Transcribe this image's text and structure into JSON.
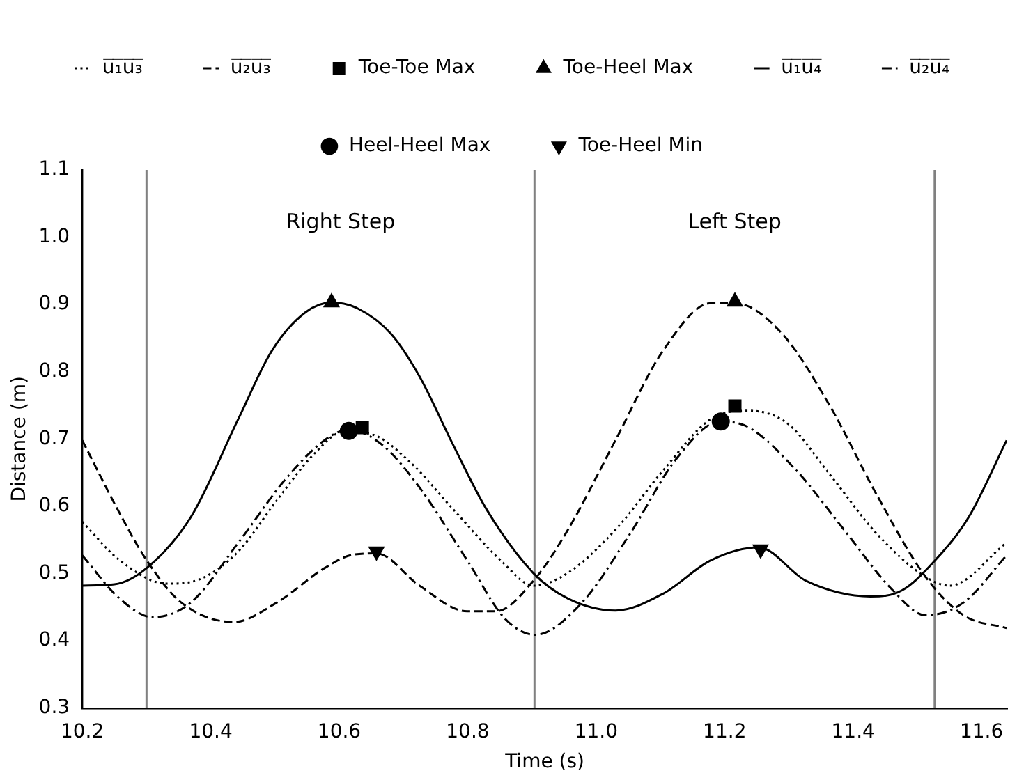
{
  "chart_data": {
    "type": "line",
    "xlabel": "Time (s)",
    "ylabel": "Distance (m)",
    "xlim": [
      10.2,
      11.64
    ],
    "ylim": [
      0.3,
      1.1
    ],
    "xticks": [
      10.2,
      10.4,
      10.6,
      10.8,
      {
        "value": 11,
        "label": "11.0"
      },
      11.2,
      11.4,
      11.6
    ],
    "yticks": [
      0.3,
      0.4,
      0.5,
      0.6,
      0.7,
      0.8,
      0.9,
      {
        "value": 1,
        "label": "1.0"
      },
      1.1
    ],
    "grid": false,
    "legend": "top",
    "marker": "none",
    "ref_lines": [
      {
        "axis": "x",
        "value": 10.3,
        "color": "#808080"
      },
      {
        "axis": "x",
        "value": 10.904,
        "color": "#808080"
      },
      {
        "axis": "x",
        "value": 11.527,
        "color": "#808080"
      }
    ],
    "annotations": [
      "Right Step",
      "Left Step"
    ],
    "series": [
      {
        "name": "u̅₁̅u̅₃̅",
        "color": "#000000",
        "line_style": "dotted",
        "x": [
          10.2,
          10.258,
          10.332,
          10.384,
          10.443,
          10.503,
          10.562,
          10.607,
          10.651,
          10.71,
          10.777,
          10.851,
          10.903,
          10.956,
          11.03,
          11.104,
          11.179,
          11.238,
          11.298,
          11.364,
          11.438,
          11.513,
          11.55,
          11.639
        ],
        "values": [
          0.577,
          0.52,
          0.485,
          0.492,
          0.533,
          0.609,
          0.679,
          0.711,
          0.707,
          0.666,
          0.596,
          0.52,
          0.482,
          0.501,
          0.565,
          0.653,
          0.73,
          0.742,
          0.723,
          0.647,
          0.558,
          0.495,
          0.482,
          0.546
        ]
      },
      {
        "name": "u̅₁̅u̅₄̅",
        "color": "#000000",
        "line_style": "solid",
        "x": [
          10.2,
          10.25,
          10.3,
          10.369,
          10.443,
          10.495,
          10.547,
          10.588,
          10.629,
          10.681,
          10.725,
          10.777,
          10.829,
          10.903,
          10.956,
          11.03,
          11.104,
          11.179,
          11.253,
          11.327,
          11.427,
          11.476,
          11.528,
          11.58,
          11.639
        ],
        "values": [
          0.482,
          0.484,
          0.508,
          0.584,
          0.73,
          0.831,
          0.888,
          0.903,
          0.894,
          0.856,
          0.793,
          0.692,
          0.596,
          0.5,
          0.463,
          0.445,
          0.47,
          0.52,
          0.539,
          0.489,
          0.466,
          0.475,
          0.52,
          0.584,
          0.698
        ]
      },
      {
        "name": "u̅₂̅u̅₃̅",
        "color": "#000000",
        "line_style": "dashed",
        "x": [
          10.2,
          10.258,
          10.3,
          10.354,
          10.436,
          10.503,
          10.577,
          10.621,
          10.658,
          10.725,
          10.799,
          10.844,
          10.903,
          10.956,
          11.03,
          11.104,
          11.179,
          11.216,
          11.29,
          11.364,
          11.438,
          11.513,
          11.572,
          11.639
        ],
        "values": [
          0.698,
          0.59,
          0.52,
          0.457,
          0.428,
          0.457,
          0.508,
          0.528,
          0.53,
          0.482,
          0.444,
          0.444,
          0.49,
          0.565,
          0.698,
          0.831,
          0.902,
          0.902,
          0.856,
          0.749,
          0.615,
          0.495,
          0.438,
          0.419
        ]
      },
      {
        "name": "u̅₂̅u̅₄̅",
        "color": "#000000",
        "line_style": "dashdot",
        "x": [
          10.2,
          10.258,
          10.31,
          10.369,
          10.443,
          10.517,
          10.577,
          10.614,
          10.666,
          10.725,
          10.799,
          10.859,
          10.905,
          10.978,
          11.052,
          11.126,
          11.193,
          11.238,
          11.312,
          11.386,
          11.461,
          11.513,
          11.572,
          11.639
        ],
        "values": [
          0.527,
          0.463,
          0.435,
          0.457,
          0.546,
          0.641,
          0.698,
          0.714,
          0.692,
          0.628,
          0.52,
          0.432,
          0.409,
          0.457,
          0.558,
          0.672,
          0.726,
          0.717,
          0.653,
          0.565,
          0.476,
          0.438,
          0.457,
          0.527
        ]
      },
      {
        "name": "Toe-Toe Max",
        "type": "scatter",
        "marker": "square",
        "color": "#000000",
        "x": [
          10.636,
          11.216
        ],
        "values": [
          0.717,
          0.749
        ]
      },
      {
        "name": "Heel-Heel Max",
        "type": "scatter",
        "marker": "circle",
        "color": "#000000",
        "x": [
          10.615,
          11.194
        ],
        "values": [
          0.712,
          0.726
        ]
      },
      {
        "name": "Toe-Heel Max",
        "type": "scatter",
        "marker": "triangle",
        "color": "#000000",
        "x": [
          10.588,
          11.216
        ],
        "values": [
          0.903,
          0.904
        ]
      },
      {
        "name": "Toe-Heel Min",
        "type": "scatter",
        "marker": "triangle_down",
        "color": "#000000",
        "x": [
          10.658,
          11.256
        ],
        "values": [
          0.533,
          0.536
        ]
      }
    ]
  }
}
